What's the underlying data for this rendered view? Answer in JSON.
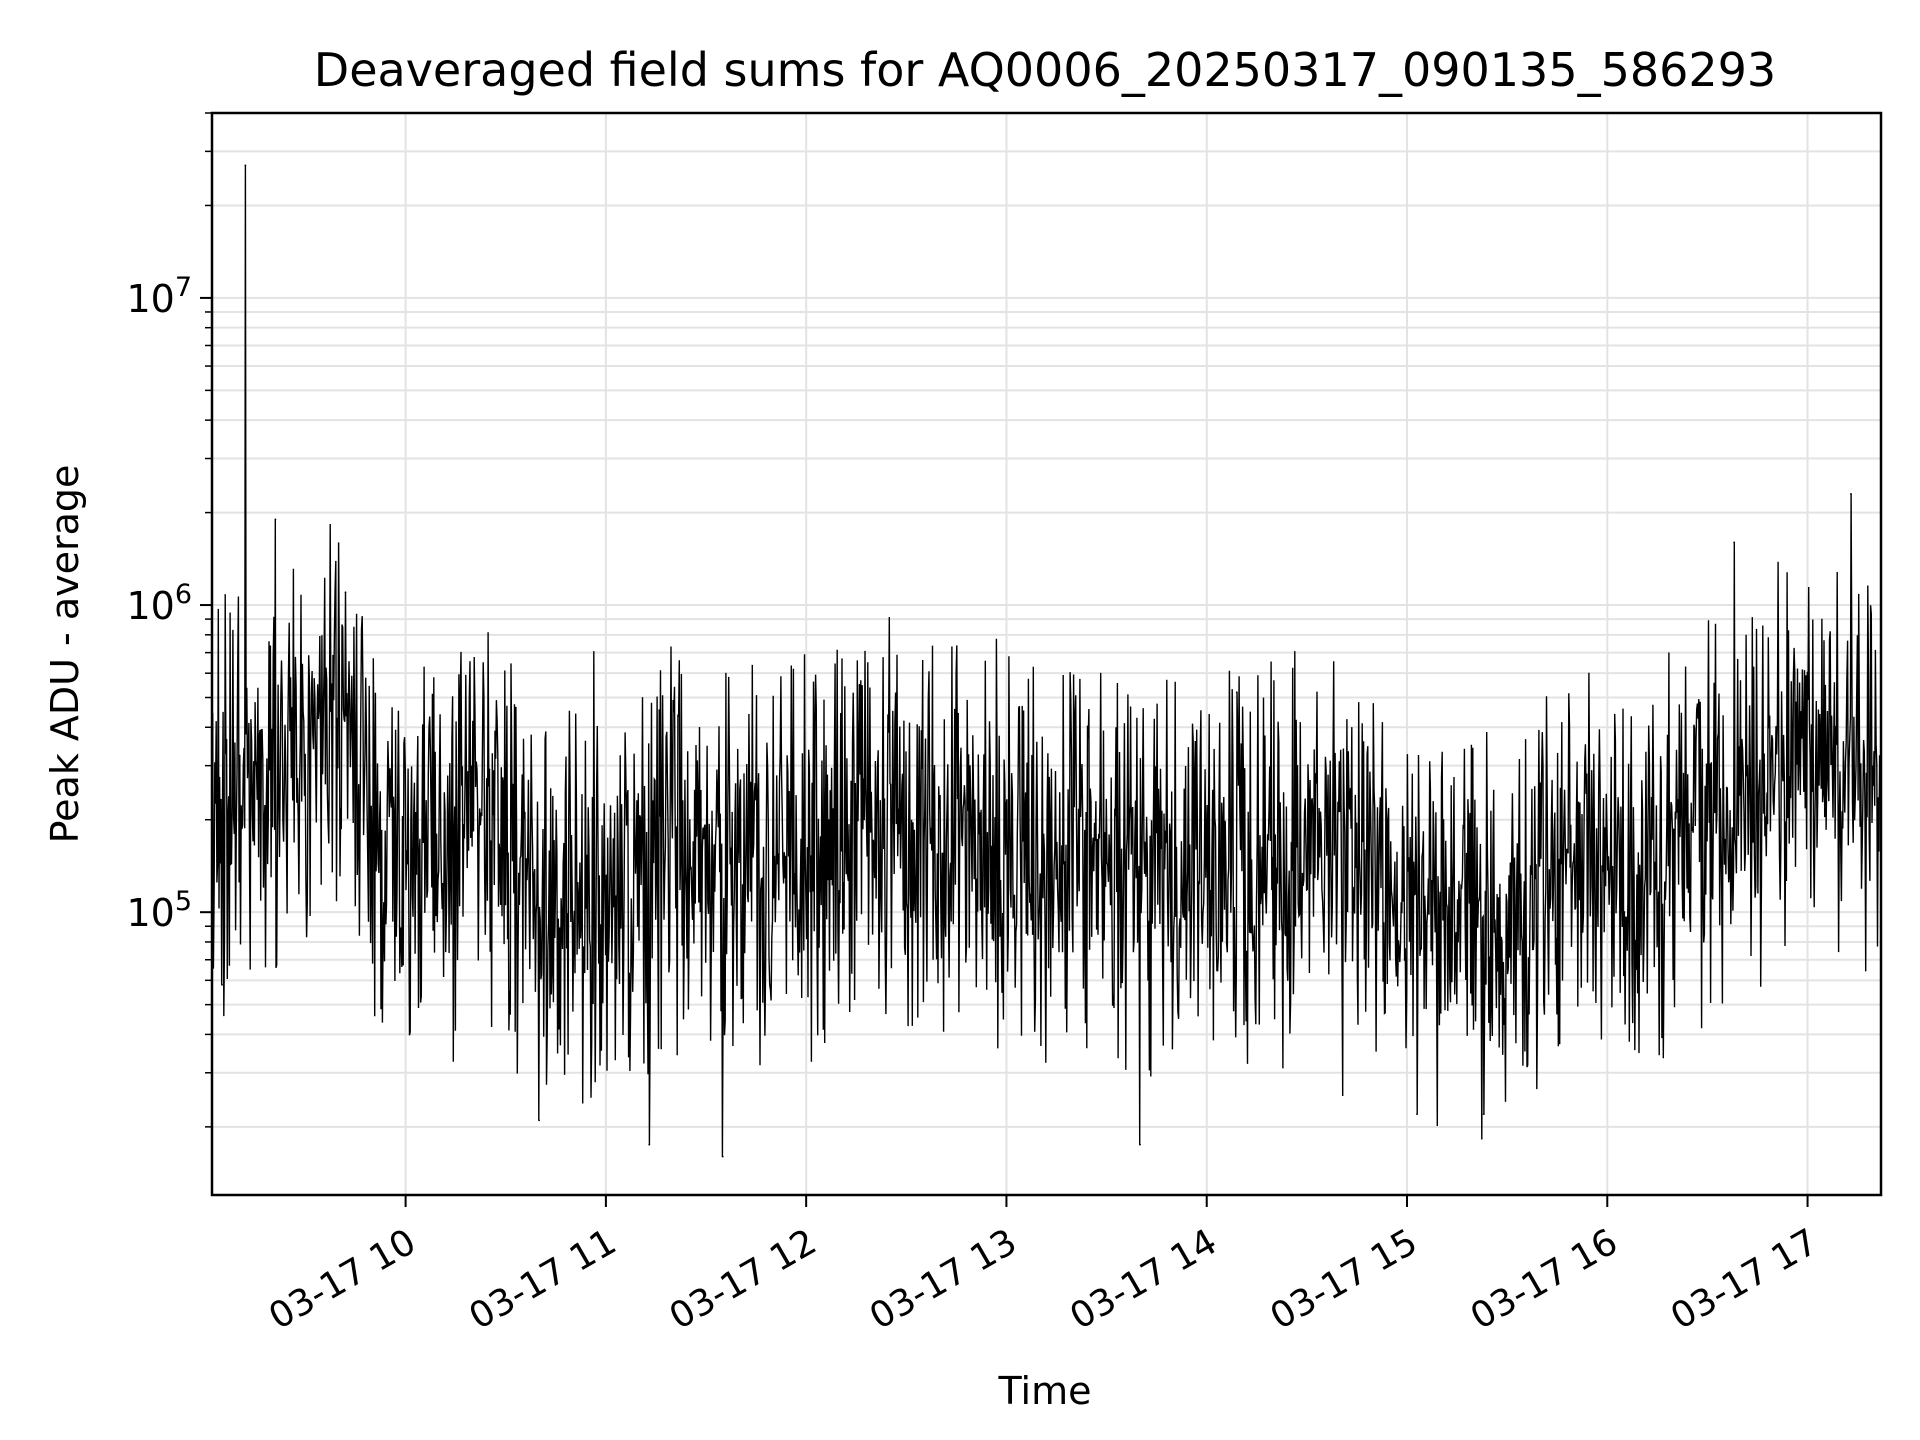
{
  "chart_data": {
    "type": "line",
    "title": "Deaveraged field sums for AQ0006_20250317_090135_586293",
    "xlabel": "Time",
    "ylabel": "Peak ADU - average",
    "x_axis": {
      "kind": "time",
      "range": [
        "2025-03-17 09:02",
        "2025-03-17 17:22"
      ],
      "ticks": [
        {
          "value": "2025-03-17 10:00",
          "label": "03-17 10"
        },
        {
          "value": "2025-03-17 11:00",
          "label": "03-17 11"
        },
        {
          "value": "2025-03-17 12:00",
          "label": "03-17 12"
        },
        {
          "value": "2025-03-17 13:00",
          "label": "03-17 13"
        },
        {
          "value": "2025-03-17 14:00",
          "label": "03-17 14"
        },
        {
          "value": "2025-03-17 15:00",
          "label": "03-17 15"
        },
        {
          "value": "2025-03-17 16:00",
          "label": "03-17 16"
        },
        {
          "value": "2025-03-17 17:00",
          "label": "03-17 17"
        }
      ]
    },
    "y_axis": {
      "scale": "log",
      "range": [
        12000,
        40000000
      ],
      "ticks": [
        {
          "value": 100000,
          "base": "10",
          "exp": "5"
        },
        {
          "value": 1000000,
          "base": "10",
          "exp": "6"
        },
        {
          "value": 10000000,
          "base": "10",
          "exp": "7"
        }
      ]
    },
    "grid": true,
    "line_color": "#000000",
    "series": [
      {
        "x": [
          "2025-03-17 09:02",
          "2025-03-17 09:08",
          "2025-03-17 09:12",
          "2025-03-17 09:16",
          "2025-03-17 09:20",
          "2025-03-17 09:25",
          "2025-03-17 09:30",
          "2025-03-17 09:35",
          "2025-03-17 09:40",
          "2025-03-17 09:46",
          "2025-03-17 09:52",
          "2025-03-17 09:58",
          "2025-03-17 10:05",
          "2025-03-17 10:12",
          "2025-03-17 10:20",
          "2025-03-17 10:28",
          "2025-03-17 10:35",
          "2025-03-17 10:42",
          "2025-03-17 10:50",
          "2025-03-17 11:00",
          "2025-03-17 11:10",
          "2025-03-17 11:20",
          "2025-03-17 11:30",
          "2025-03-17 11:40",
          "2025-03-17 11:50",
          "2025-03-17 12:00",
          "2025-03-17 12:10",
          "2025-03-17 12:20",
          "2025-03-17 12:30",
          "2025-03-17 12:40",
          "2025-03-17 12:50",
          "2025-03-17 13:00",
          "2025-03-17 13:10",
          "2025-03-17 13:20",
          "2025-03-17 13:30",
          "2025-03-17 13:40",
          "2025-03-17 13:50",
          "2025-03-17 14:00",
          "2025-03-17 14:10",
          "2025-03-17 14:20",
          "2025-03-17 14:30",
          "2025-03-17 14:40",
          "2025-03-17 14:50",
          "2025-03-17 15:00",
          "2025-03-17 15:10",
          "2025-03-17 15:20",
          "2025-03-17 15:30",
          "2025-03-17 15:40",
          "2025-03-17 15:50",
          "2025-03-17 16:00",
          "2025-03-17 16:10",
          "2025-03-17 16:20",
          "2025-03-17 16:30",
          "2025-03-17 16:40",
          "2025-03-17 16:50",
          "2025-03-17 17:00",
          "2025-03-17 17:10",
          "2025-03-17 17:22"
        ],
        "y": [
          200000,
          230000,
          300000,
          250000,
          230000,
          300000,
          330000,
          420000,
          500000,
          280000,
          170000,
          150000,
          140000,
          160000,
          200000,
          210000,
          120000,
          100000,
          110000,
          125000,
          130000,
          150000,
          150000,
          155000,
          150000,
          160000,
          175000,
          190000,
          180000,
          170000,
          170000,
          160000,
          150000,
          150000,
          150000,
          145000,
          140000,
          140000,
          145000,
          150000,
          150000,
          145000,
          130000,
          110000,
          100000,
          90000,
          90000,
          140000,
          170000,
          150000,
          130000,
          160000,
          220000,
          260000,
          300000,
          310000,
          300000,
          290000
        ],
        "peaks": [
          {
            "x": "2025-03-17 09:12",
            "y": 27000000
          },
          {
            "x": "2025-03-17 09:21",
            "y": 1900000
          },
          {
            "x": "2025-03-17 09:42",
            "y": 1100000
          },
          {
            "x": "2025-03-17 12:16",
            "y": 550000
          },
          {
            "x": "2025-03-17 14:09",
            "y": 520000
          },
          {
            "x": "2025-03-17 16:38",
            "y": 1600000
          },
          {
            "x": "2025-03-17 17:13",
            "y": 2300000
          }
        ],
        "dips": [
          {
            "x": "2025-03-17 09:05",
            "y": 58000
          },
          {
            "x": "2025-03-17 10:40",
            "y": 21000
          },
          {
            "x": "2025-03-17 11:13",
            "y": 17500
          },
          {
            "x": "2025-03-17 11:35",
            "y": 16000
          },
          {
            "x": "2025-03-17 13:40",
            "y": 17500
          },
          {
            "x": "2025-03-17 15:03",
            "y": 22000
          },
          {
            "x": "2025-03-17 15:23",
            "y": 22000
          }
        ]
      }
    ]
  }
}
